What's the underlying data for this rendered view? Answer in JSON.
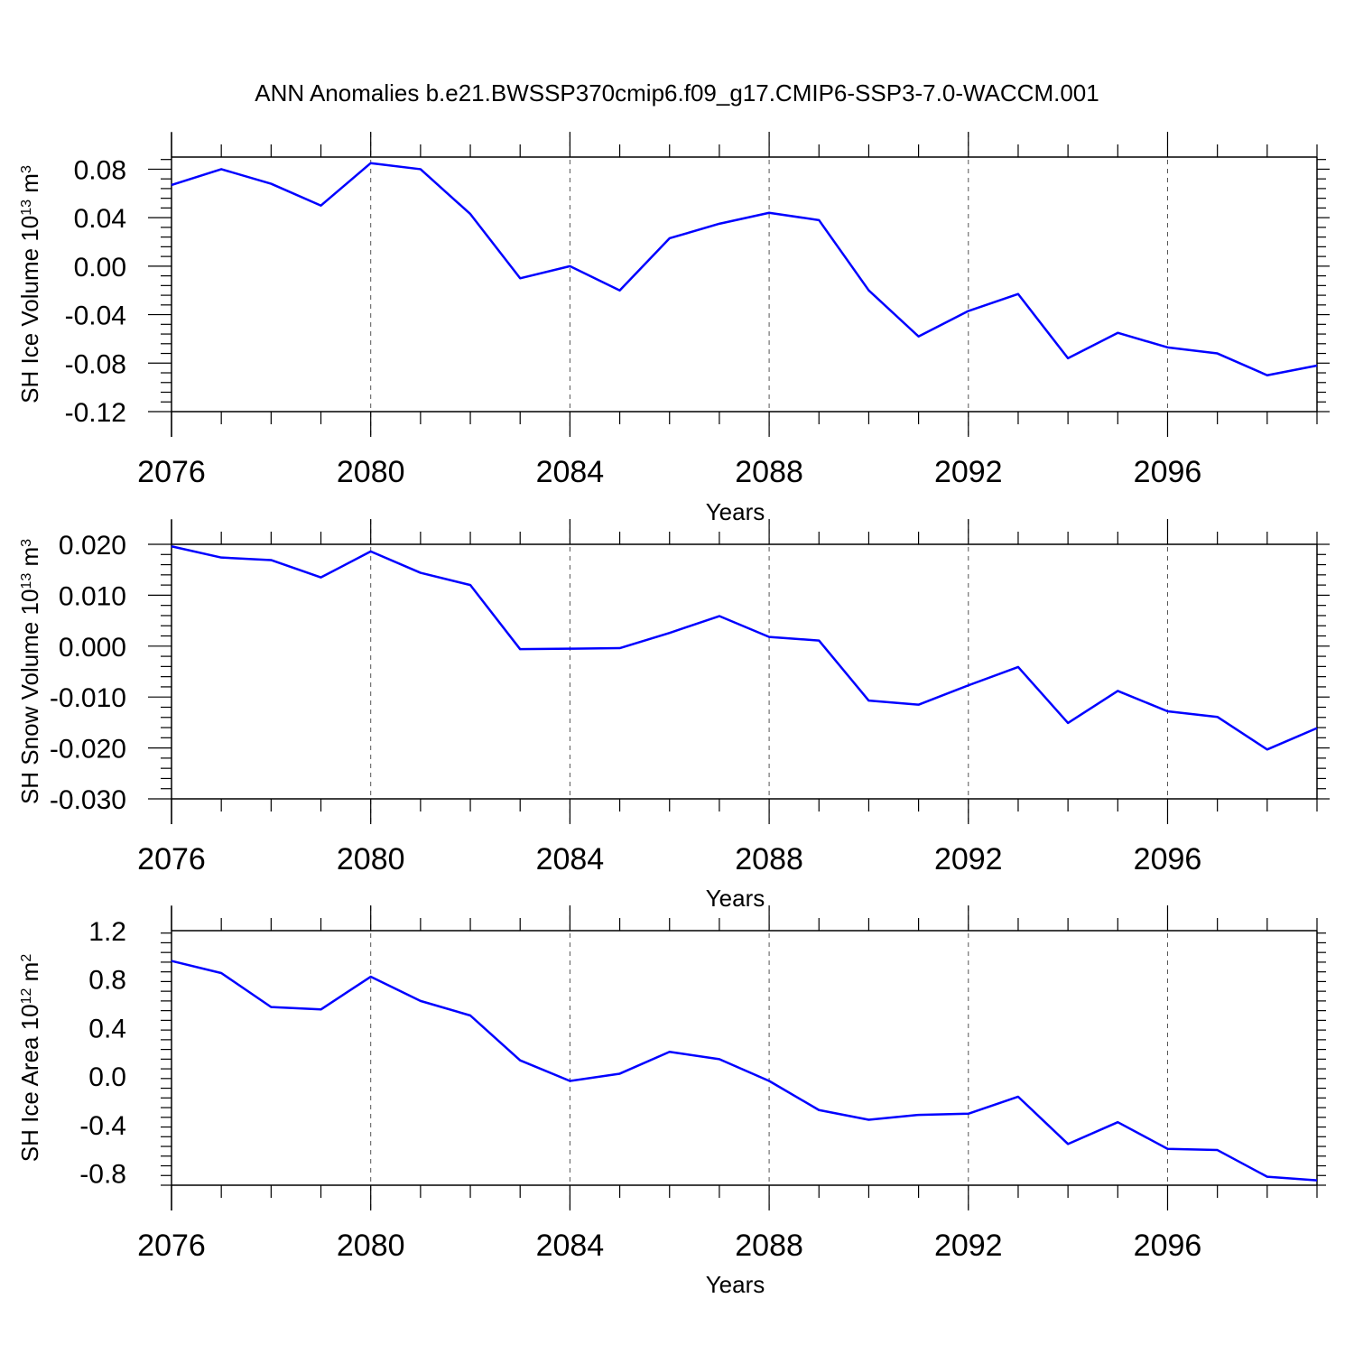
{
  "title": "ANN Anomalies b.e21.BWSSP370cmip6.f09_g17.CMIP6-SSP3-7.0-WACCM.001",
  "colors": {
    "line": "#0000ff",
    "axis": "#000000",
    "grid": "#555555"
  },
  "chart_data": [
    {
      "type": "line",
      "ylabel": "SH Ice Volume 10",
      "ylabel_sup": "13",
      "ylabel_unit": " m",
      "ylabel_unit_sup": "3",
      "xlabel": "Years",
      "xlim": [
        2076,
        2099
      ],
      "ylim": [
        -0.12,
        0.09
      ],
      "yticks": [
        "0.08",
        "0.04",
        "0.00",
        "-0.04",
        "-0.08",
        "-0.12"
      ],
      "xticks": [
        "2076",
        "2080",
        "2084",
        "2088",
        "2092",
        "2096"
      ],
      "grid": "vertical dashed at major x ticks",
      "x": [
        2076,
        2077,
        2078,
        2079,
        2080,
        2081,
        2082,
        2083,
        2084,
        2085,
        2086,
        2087,
        2088,
        2089,
        2090,
        2091,
        2092,
        2093,
        2094,
        2095,
        2096,
        2097,
        2098,
        2099
      ],
      "values": [
        0.067,
        0.08,
        0.068,
        0.05,
        0.085,
        0.08,
        0.043,
        -0.01,
        0.0,
        -0.02,
        0.023,
        0.035,
        0.044,
        0.038,
        -0.02,
        -0.058,
        -0.037,
        -0.023,
        -0.076,
        -0.055,
        -0.067,
        -0.072,
        -0.09,
        -0.082
      ]
    },
    {
      "type": "line",
      "ylabel": "SH Snow Volume 10",
      "ylabel_sup": "13",
      "ylabel_unit": " m",
      "ylabel_unit_sup": "3",
      "xlabel": "Years",
      "xlim": [
        2076,
        2099
      ],
      "ylim": [
        -0.03,
        0.02
      ],
      "yticks": [
        "0.020",
        "0.010",
        "0.000",
        "-0.010",
        "-0.020",
        "-0.030"
      ],
      "xticks": [
        "2076",
        "2080",
        "2084",
        "2088",
        "2092",
        "2096"
      ],
      "grid": "vertical dashed at major x ticks",
      "x": [
        2076,
        2077,
        2078,
        2079,
        2080,
        2081,
        2082,
        2083,
        2084,
        2085,
        2086,
        2087,
        2088,
        2089,
        2090,
        2091,
        2092,
        2093,
        2094,
        2095,
        2096,
        2097,
        2098,
        2099
      ],
      "values": [
        0.0196,
        0.0174,
        0.0169,
        0.0135,
        0.0186,
        0.0144,
        0.012,
        -0.0006,
        -0.0005,
        -0.0004,
        0.0026,
        0.0059,
        0.0018,
        0.0011,
        -0.0107,
        -0.0115,
        -0.0077,
        -0.0041,
        -0.0151,
        -0.0088,
        -0.0128,
        -0.0139,
        -0.0203,
        -0.0161
      ]
    },
    {
      "type": "line",
      "ylabel": "SH Ice Area 10",
      "ylabel_sup": "12",
      "ylabel_unit": " m",
      "ylabel_unit_sup": "2",
      "xlabel": "Years",
      "xlim": [
        2076,
        2099
      ],
      "ylim": [
        -0.9,
        1.2
      ],
      "yticks": [
        "1.2",
        "0.8",
        "0.4",
        "0.0",
        "-0.4",
        "-0.8"
      ],
      "xticks": [
        "2076",
        "2080",
        "2084",
        "2088",
        "2092",
        "2096"
      ],
      "grid": "vertical dashed at major x ticks",
      "x": [
        2076,
        2077,
        2078,
        2079,
        2080,
        2081,
        2082,
        2083,
        2084,
        2085,
        2086,
        2087,
        2088,
        2089,
        2090,
        2091,
        2092,
        2093,
        2094,
        2095,
        2096,
        2097,
        2098,
        2099
      ],
      "values": [
        0.95,
        0.85,
        0.57,
        0.55,
        0.82,
        0.62,
        0.5,
        0.13,
        -0.04,
        0.02,
        0.2,
        0.14,
        -0.04,
        -0.28,
        -0.36,
        -0.32,
        -0.31,
        -0.17,
        -0.56,
        -0.38,
        -0.6,
        -0.61,
        -0.83,
        -0.86
      ]
    }
  ]
}
